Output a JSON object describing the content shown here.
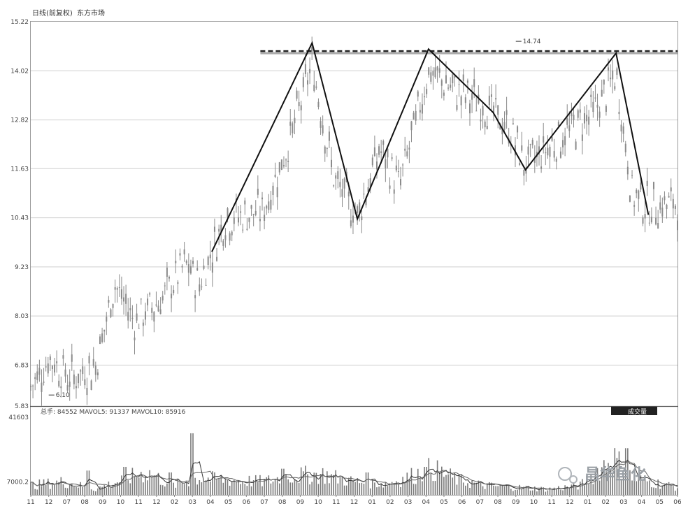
{
  "header": {
    "title": "日线(前复权)",
    "subtitle": "东方市场",
    "volume_legend": "总手: 84552  MAVOL5: 91337  MAVOL10: 85916",
    "button": "成交量"
  },
  "watermark": "昌华鱼化",
  "colors": {
    "candle": "#8a8a8a",
    "trend": "#111111",
    "grid": "#cfcfcf",
    "resistance": "#222222"
  },
  "chart_data": [
    {
      "type": "line",
      "title": "",
      "ylabel": "",
      "y_ticks": [
        5.83,
        6.83,
        8.03,
        9.23,
        10.43,
        11.63,
        12.82,
        14.02,
        15.22
      ],
      "ylim": [
        5.83,
        15.22
      ],
      "x_ticks": [
        "11",
        "12",
        "07",
        "08",
        "09",
        "10",
        "11",
        "12",
        "02",
        "03",
        "04",
        "05",
        "06",
        "07",
        "08",
        "09",
        "10",
        "11",
        "12",
        "01",
        "02",
        "03",
        "04",
        "05",
        "06",
        "07",
        "08",
        "09",
        "10",
        "11",
        "12",
        "01",
        "02",
        "03",
        "04",
        "05",
        "06"
      ],
      "annotations": [
        {
          "text": "14.74",
          "x_index": 27,
          "value": 14.74
        },
        {
          "text": "6.10",
          "x_index": 1,
          "value": 6.1
        }
      ],
      "resistance_level": 14.5,
      "trend_points": [
        {
          "x": 0.28,
          "y": 9.6
        },
        {
          "x": 0.435,
          "y": 14.7
        },
        {
          "x": 0.505,
          "y": 10.4
        },
        {
          "x": 0.615,
          "y": 14.55
        },
        {
          "x": 0.715,
          "y": 13.0
        },
        {
          "x": 0.765,
          "y": 11.6
        },
        {
          "x": 0.905,
          "y": 14.45
        },
        {
          "x": 0.955,
          "y": 10.5
        }
      ],
      "price_path": [
        {
          "x": 0.0,
          "y": 6.3
        },
        {
          "x": 0.03,
          "y": 7.0
        },
        {
          "x": 0.06,
          "y": 6.5
        },
        {
          "x": 0.1,
          "y": 6.8
        },
        {
          "x": 0.13,
          "y": 8.8
        },
        {
          "x": 0.16,
          "y": 7.9
        },
        {
          "x": 0.2,
          "y": 8.4
        },
        {
          "x": 0.24,
          "y": 9.3
        },
        {
          "x": 0.26,
          "y": 8.8
        },
        {
          "x": 0.3,
          "y": 10.4
        },
        {
          "x": 0.36,
          "y": 10.6
        },
        {
          "x": 0.4,
          "y": 12.3
        },
        {
          "x": 0.435,
          "y": 14.2
        },
        {
          "x": 0.47,
          "y": 11.3
        },
        {
          "x": 0.505,
          "y": 10.5
        },
        {
          "x": 0.54,
          "y": 12.1
        },
        {
          "x": 0.57,
          "y": 11.2
        },
        {
          "x": 0.615,
          "y": 14.0
        },
        {
          "x": 0.66,
          "y": 13.5
        },
        {
          "x": 0.7,
          "y": 13.2
        },
        {
          "x": 0.74,
          "y": 12.6
        },
        {
          "x": 0.765,
          "y": 11.7
        },
        {
          "x": 0.82,
          "y": 12.4
        },
        {
          "x": 0.87,
          "y": 13.0
        },
        {
          "x": 0.905,
          "y": 13.9
        },
        {
          "x": 0.93,
          "y": 11.0
        },
        {
          "x": 0.96,
          "y": 10.7
        },
        {
          "x": 1.0,
          "y": 10.8
        }
      ]
    },
    {
      "type": "bar",
      "title": "",
      "y_ticks": [
        7000.2,
        41603
      ],
      "ylim": [
        0,
        41603
      ],
      "volume_profile": [
        {
          "x": 0.0,
          "v": 5000
        },
        {
          "x": 0.05,
          "v": 7000
        },
        {
          "x": 0.1,
          "v": 3000
        },
        {
          "x": 0.15,
          "v": 9000
        },
        {
          "x": 0.18,
          "v": 12000
        },
        {
          "x": 0.22,
          "v": 5000
        },
        {
          "x": 0.26,
          "v": 9000
        },
        {
          "x": 0.3,
          "v": 8000
        },
        {
          "x": 0.36,
          "v": 7000
        },
        {
          "x": 0.4,
          "v": 10000
        },
        {
          "x": 0.45,
          "v": 11000
        },
        {
          "x": 0.5,
          "v": 7000
        },
        {
          "x": 0.55,
          "v": 6000
        },
        {
          "x": 0.58,
          "v": 9000
        },
        {
          "x": 0.62,
          "v": 14000
        },
        {
          "x": 0.66,
          "v": 8000
        },
        {
          "x": 0.7,
          "v": 5000
        },
        {
          "x": 0.75,
          "v": 4000
        },
        {
          "x": 0.8,
          "v": 3000
        },
        {
          "x": 0.85,
          "v": 5000
        },
        {
          "x": 0.9,
          "v": 20000
        },
        {
          "x": 0.93,
          "v": 9000
        },
        {
          "x": 1.0,
          "v": 4000
        }
      ],
      "spikes": [
        {
          "x": 0.25,
          "v": 33000
        },
        {
          "x": 0.145,
          "v": 15000
        },
        {
          "x": 0.09,
          "v": 13000
        },
        {
          "x": 0.61,
          "v": 15000
        },
        {
          "x": 0.92,
          "v": 25000
        },
        {
          "x": 0.52,
          "v": 12000
        },
        {
          "x": 0.39,
          "v": 14000
        },
        {
          "x": 0.215,
          "v": 12000
        }
      ]
    }
  ]
}
